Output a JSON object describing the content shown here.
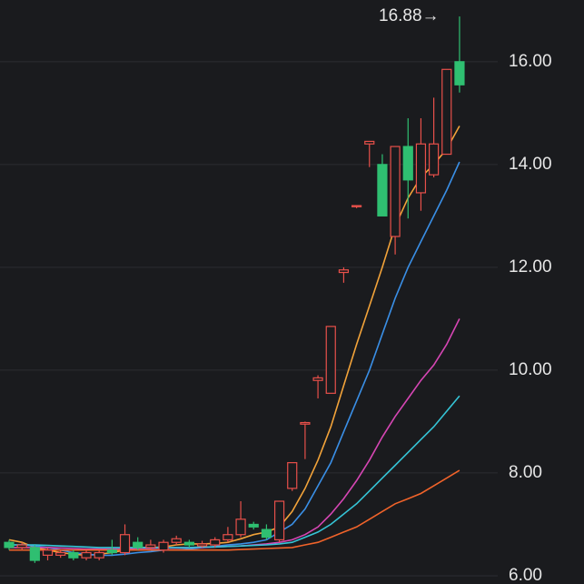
{
  "chart_data": {
    "type": "candlestick",
    "annotation": "16.88→",
    "ylim": [
      5.84,
      17.2
    ],
    "yticks": [
      {
        "value": 6,
        "label": "6.00"
      },
      {
        "value": 8,
        "label": "8.00"
      },
      {
        "value": 10,
        "label": "10.00"
      },
      {
        "value": 12,
        "label": "12.00"
      },
      {
        "value": 14,
        "label": "14.00"
      },
      {
        "value": 16,
        "label": "16.00"
      }
    ],
    "grid": true,
    "up_color": "#e8504a",
    "down_color": "#2fbf71",
    "open": [
      6.65,
      6.55,
      6.55,
      6.4,
      6.4,
      6.45,
      6.35,
      6.35,
      6.5,
      6.45,
      6.65,
      6.55,
      6.5,
      6.65,
      6.65,
      6.58,
      6.6,
      6.7,
      6.8,
      7.0,
      6.9,
      6.7,
      7.7,
      8.95,
      9.8,
      9.55,
      11.9,
      13.18,
      14.4,
      14.0,
      12.6,
      14.35,
      13.45,
      13.8,
      14.2,
      16.0
    ],
    "high": [
      6.7,
      6.65,
      6.6,
      6.55,
      6.5,
      6.5,
      6.5,
      6.5,
      6.7,
      7.0,
      6.75,
      6.7,
      6.7,
      6.78,
      6.7,
      6.68,
      6.75,
      6.95,
      7.45,
      7.05,
      7.0,
      7.45,
      8.2,
      9.0,
      9.9,
      10.85,
      12.0,
      13.2,
      14.45,
      14.2,
      14.35,
      14.9,
      14.9,
      15.3,
      15.85,
      16.88
    ],
    "low": [
      6.5,
      6.5,
      6.25,
      6.3,
      6.35,
      6.3,
      6.3,
      6.3,
      6.4,
      6.4,
      6.5,
      6.5,
      6.45,
      6.6,
      6.55,
      6.55,
      6.55,
      6.65,
      6.75,
      6.9,
      6.7,
      6.65,
      7.65,
      8.27,
      9.45,
      9.55,
      11.7,
      13.15,
      13.95,
      13.0,
      12.25,
      12.95,
      13.1,
      13.75,
      14.2,
      15.4
    ],
    "close": [
      6.55,
      6.6,
      6.3,
      6.5,
      6.45,
      6.35,
      6.45,
      6.45,
      6.45,
      6.8,
      6.55,
      6.6,
      6.65,
      6.72,
      6.6,
      6.62,
      6.7,
      6.8,
      7.1,
      6.95,
      6.75,
      7.45,
      8.2,
      8.98,
      9.85,
      10.85,
      11.95,
      13.2,
      14.45,
      13.0,
      14.35,
      13.7,
      14.4,
      14.4,
      15.85,
      15.55
    ],
    "series": [
      {
        "color": "#f2a33a",
        "values": [
          6.7,
          6.65,
          6.55,
          6.5,
          6.45,
          6.42,
          6.4,
          6.42,
          6.45,
          6.5,
          6.55,
          6.55,
          6.56,
          6.6,
          6.62,
          6.62,
          6.63,
          6.65,
          6.72,
          6.8,
          6.85,
          6.95,
          7.25,
          7.7,
          8.25,
          8.9,
          9.7,
          10.5,
          11.25,
          12.0,
          12.8,
          13.35,
          13.75,
          14.0,
          14.3,
          14.75
        ]
      },
      {
        "color": "#3a8fe6",
        "values": [
          6.6,
          6.6,
          6.58,
          6.55,
          6.5,
          6.45,
          6.42,
          6.4,
          6.4,
          6.42,
          6.45,
          6.47,
          6.5,
          6.5,
          6.52,
          6.55,
          6.57,
          6.6,
          6.62,
          6.65,
          6.7,
          6.85,
          7.0,
          7.3,
          7.75,
          8.2,
          8.8,
          9.4,
          10.0,
          10.7,
          11.4,
          12.0,
          12.5,
          13.0,
          13.5,
          14.05
        ]
      },
      {
        "color": "#d646b4",
        "values": [
          6.55,
          6.55,
          6.55,
          6.55,
          6.54,
          6.53,
          6.52,
          6.52,
          6.52,
          6.52,
          6.53,
          6.53,
          6.54,
          6.54,
          6.55,
          6.55,
          6.56,
          6.57,
          6.58,
          6.6,
          6.62,
          6.65,
          6.7,
          6.8,
          6.95,
          7.2,
          7.5,
          7.85,
          8.25,
          8.7,
          9.1,
          9.45,
          9.8,
          10.1,
          10.5,
          11.0
        ]
      },
      {
        "color": "#35c4d6",
        "values": [
          6.6,
          6.6,
          6.6,
          6.59,
          6.58,
          6.57,
          6.56,
          6.55,
          6.55,
          6.55,
          6.55,
          6.55,
          6.55,
          6.55,
          6.55,
          6.56,
          6.56,
          6.57,
          6.58,
          6.59,
          6.6,
          6.62,
          6.65,
          6.75,
          6.85,
          7.0,
          7.2,
          7.4,
          7.65,
          7.9,
          8.15,
          8.4,
          8.65,
          8.9,
          9.2,
          9.5
        ]
      },
      {
        "color": "#f0632a",
        "values": [
          6.5,
          6.5,
          6.5,
          6.5,
          6.5,
          6.5,
          6.5,
          6.5,
          6.5,
          6.5,
          6.5,
          6.5,
          6.5,
          6.5,
          6.5,
          6.5,
          6.5,
          6.5,
          6.51,
          6.52,
          6.53,
          6.54,
          6.55,
          6.6,
          6.65,
          6.75,
          6.85,
          6.95,
          7.1,
          7.25,
          7.4,
          7.5,
          7.6,
          7.75,
          7.9,
          8.05
        ]
      }
    ]
  }
}
